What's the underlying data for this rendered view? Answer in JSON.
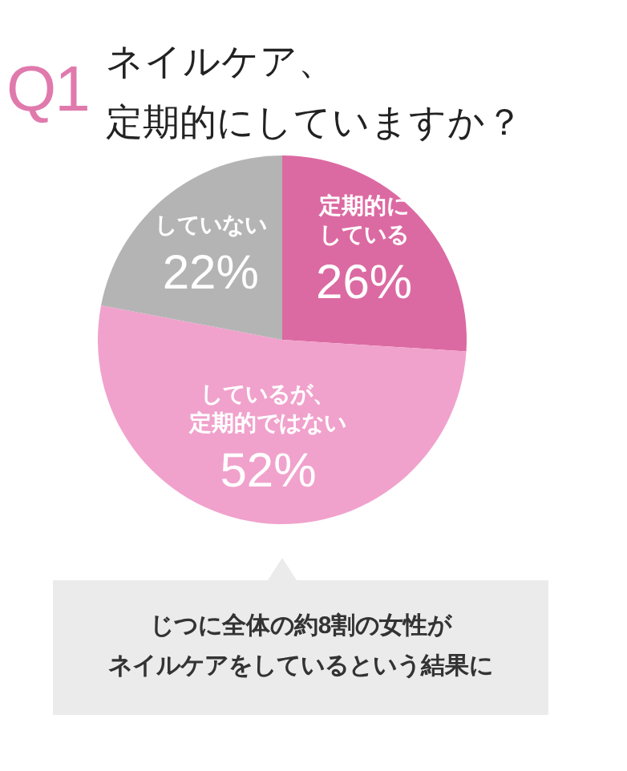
{
  "chart_data": {
    "type": "pie",
    "title": "ネイルケア、定期的にしていますか？",
    "categories": [
      "定期的にしている",
      "しているが、定期的ではない",
      "していない"
    ],
    "values": [
      26,
      52,
      22
    ],
    "value_labels": [
      "26%",
      "52%",
      "22%"
    ],
    "colors": [
      "#dc6aa2",
      "#f0a2cc",
      "#b4b4b4"
    ],
    "annotations": [
      "Q1",
      "じつに全体の約8割の女性がネイルケアをしているという結果に"
    ]
  }
}
